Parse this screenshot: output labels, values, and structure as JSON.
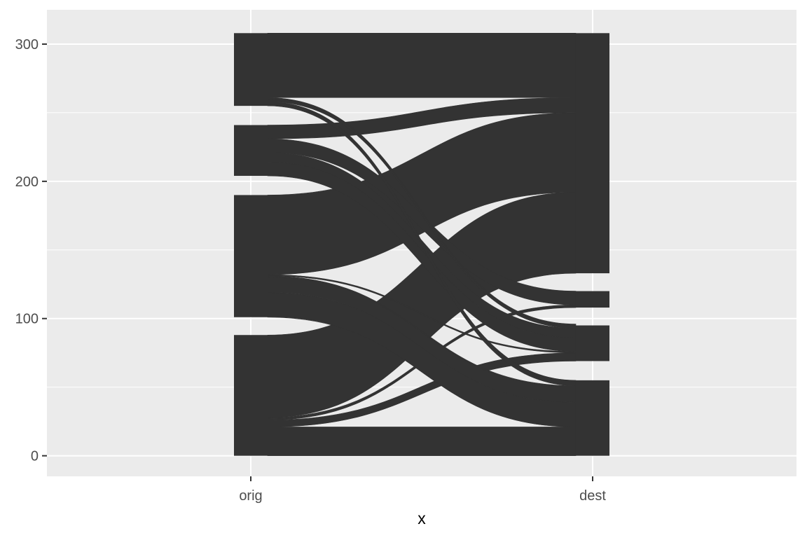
{
  "chart_data": {
    "type": "alluvial",
    "xlabel": "x",
    "ylabel": "",
    "title": "",
    "x_categories": [
      "orig",
      "dest"
    ],
    "y_ticks": [
      0,
      100,
      200,
      300
    ],
    "ylim": [
      -15,
      325
    ],
    "grid": true,
    "legend": "none",
    "colors": {
      "panel": "#ebebeb",
      "grid": "#ffffff",
      "fill": "#333333",
      "tick_text": "#4d4d4d",
      "tick_mark": "#333333",
      "axis_title": "#000000"
    },
    "strata": {
      "orig": [
        {
          "y0": 0,
          "y1": 88
        },
        {
          "y0": 101,
          "y1": 190
        },
        {
          "y0": 204,
          "y1": 241
        },
        {
          "y0": 255,
          "y1": 308
        }
      ],
      "dest": [
        {
          "y0": 0,
          "y1": 55
        },
        {
          "y0": 69,
          "y1": 95
        },
        {
          "y0": 108,
          "y1": 120
        },
        {
          "y0": 133,
          "y1": 308
        }
      ]
    },
    "flows": [
      {
        "from": [
          0,
          21
        ],
        "to": [
          0,
          21
        ]
      },
      {
        "from": [
          21,
          26
        ],
        "to": [
          69,
          75
        ]
      },
      {
        "from": [
          26,
          27
        ],
        "to": [
          108,
          109
        ]
      },
      {
        "from": [
          27,
          28
        ],
        "to": [
          109,
          110
        ]
      },
      {
        "from": [
          28,
          88
        ],
        "to": [
          133,
          192
        ]
      },
      {
        "from": [
          101,
          119
        ],
        "to": [
          21,
          39
        ]
      },
      {
        "from": [
          119,
          130
        ],
        "to": [
          39,
          50
        ]
      },
      {
        "from": [
          130,
          131
        ],
        "to": [
          50,
          51
        ]
      },
      {
        "from": [
          131,
          132
        ],
        "to": [
          75,
          76
        ]
      },
      {
        "from": [
          132,
          190
        ],
        "to": [
          192,
          250
        ]
      },
      {
        "from": [
          204,
          214
        ],
        "to": [
          76,
          86
        ]
      },
      {
        "from": [
          214,
          221
        ],
        "to": [
          86,
          93
        ]
      },
      {
        "from": [
          221,
          231
        ],
        "to": [
          110,
          120
        ]
      },
      {
        "from": [
          231,
          241
        ],
        "to": [
          250,
          261
        ]
      },
      {
        "from": [
          255,
          258
        ],
        "to": [
          51,
          55
        ]
      },
      {
        "from": [
          258,
          260
        ],
        "to": [
          93,
          95
        ]
      },
      {
        "from": [
          260,
          261
        ],
        "to": [
          95,
          96
        ]
      },
      {
        "from": [
          261,
          308
        ],
        "to": [
          261,
          308
        ]
      }
    ]
  }
}
